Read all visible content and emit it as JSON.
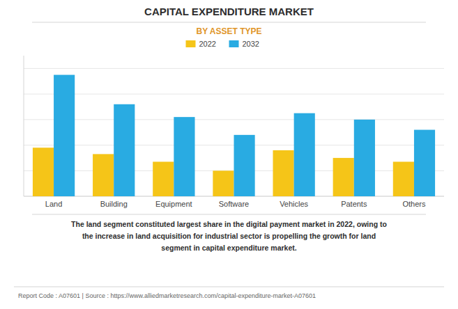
{
  "chart_data": {
    "type": "bar",
    "title": "CAPITAL EXPENDITURE MARKET",
    "subtitle": "BY ASSET TYPE",
    "categories": [
      "Land",
      "Building",
      "Equipment",
      "Software",
      "Vehicles",
      "Patents",
      "Others"
    ],
    "series": [
      {
        "name": "2022",
        "color": "#F5C518",
        "values": [
          38,
          33,
          27,
          20,
          36,
          30,
          27
        ]
      },
      {
        "name": "2032",
        "color": "#29ABE2",
        "values": [
          95,
          72,
          62,
          48,
          65,
          60,
          52
        ]
      }
    ],
    "ylim": [
      0,
      110
    ],
    "yticks": [
      0,
      20,
      40,
      60,
      80,
      100
    ],
    "grid": true,
    "legend": "top",
    "tick_labels": "x",
    "annotations": [
      "The land segment constituted largest share in the digital payment market in 2022, owing to\nthe increase in land acquisition for industrial sector is propelling the growth for land\nsegment in capital expenditure market.",
      "Report Code : A07601  |  Source : https://www.alliedmarketresearch.com/capital-expenditure-market-A07601"
    ]
  }
}
